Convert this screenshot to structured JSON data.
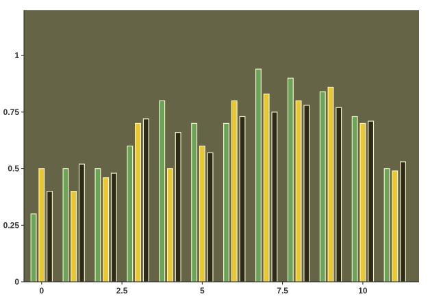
{
  "chart_data": {
    "type": "bar",
    "x": [
      0,
      1,
      2,
      3,
      4,
      5,
      6,
      7,
      8,
      9,
      10,
      11
    ],
    "series": [
      {
        "values": [
          0.3,
          0.5,
          0.5,
          0.6,
          0.8,
          0.7,
          0.7,
          0.94,
          0.9,
          0.84,
          0.73,
          0.5
        ],
        "color": "#6aa35a"
      },
      {
        "values": [
          0.5,
          0.4,
          0.46,
          0.7,
          0.5,
          0.6,
          0.8,
          0.83,
          0.8,
          0.86,
          0.7,
          0.49
        ],
        "color": "#e8c82e"
      },
      {
        "values": [
          0.4,
          0.52,
          0.48,
          0.72,
          0.66,
          0.57,
          0.73,
          0.75,
          0.78,
          0.77,
          0.71,
          0.53
        ],
        "color": "#2e2a18"
      }
    ],
    "xticks": [
      0,
      2.5,
      5,
      7.5,
      10
    ],
    "xtick_labels": [
      "0",
      "2.5",
      "5",
      "7.5",
      "10"
    ],
    "yticks": [
      0,
      0.25,
      0.5,
      0.75,
      1
    ],
    "ytick_labels": [
      "0",
      "0.25",
      "0.5",
      "0.75",
      "1"
    ],
    "xlim": [
      -0.55,
      11.75
    ],
    "ylim": [
      0,
      1.2
    ],
    "grid": false,
    "plot_background": "#666446",
    "bar_edge_color": "#f4f0c8",
    "title": "",
    "xlabel": "",
    "ylabel": ""
  }
}
